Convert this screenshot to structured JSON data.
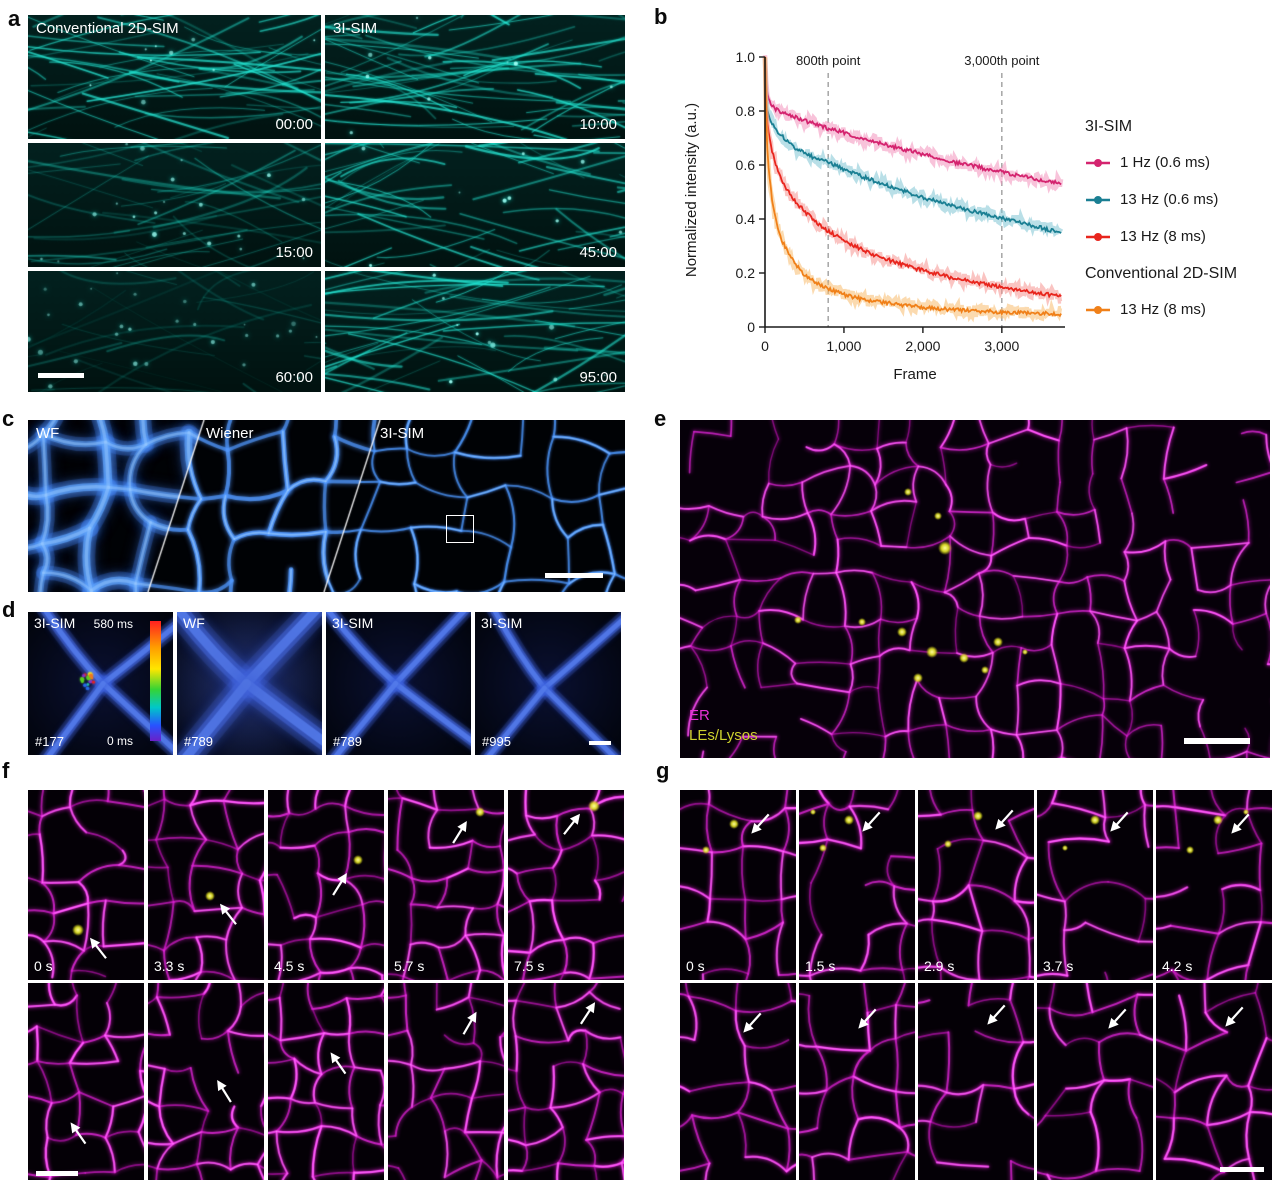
{
  "panels": {
    "a": "a",
    "b": "b",
    "c": "c",
    "d": "d",
    "e": "e",
    "f": "f",
    "g": "g"
  },
  "panel_a": {
    "col1_label": "Conventional 2D-SIM",
    "col2_label": "3I-SIM",
    "timestamps": [
      "00:00",
      "10:00",
      "15:00",
      "45:00",
      "60:00",
      "95:00"
    ]
  },
  "chart_data": {
    "type": "line",
    "title": "",
    "xlabel": "Frame",
    "ylabel": "Normalized intensity (a.u.)",
    "xlim": [
      0,
      3800
    ],
    "ylim": [
      0,
      1.0
    ],
    "xticks": [
      0,
      1000,
      2000,
      3000
    ],
    "xtick_labels": [
      "0",
      "1,000",
      "2,000",
      "3,000"
    ],
    "yticks": [
      0,
      0.2,
      0.4,
      0.6,
      0.8,
      1.0
    ],
    "ytick_labels": [
      "0",
      "0.2",
      "0.4",
      "0.6",
      "0.8",
      "1.0"
    ],
    "grid": false,
    "legend_position": "right",
    "annotations": [
      {
        "text": "800th point",
        "x": 800
      },
      {
        "text": "3,000th point",
        "x": 3000
      }
    ],
    "legend": {
      "group1": "3I-SIM",
      "group2": "Conventional 2D-SIM"
    },
    "x": [
      0,
      10,
      25,
      50,
      100,
      150,
      200,
      300,
      400,
      500,
      600,
      700,
      800,
      1000,
      1200,
      1400,
      1600,
      1800,
      2000,
      2200,
      2400,
      2600,
      2800,
      3000,
      3200,
      3400,
      3600,
      3750
    ],
    "series": [
      {
        "name": "1 Hz (0.6 ms)",
        "group": "3I-SIM",
        "color": "#d4246f",
        "band": "#f291bb",
        "values": [
          1.0,
          0.92,
          0.87,
          0.84,
          0.815,
          0.805,
          0.795,
          0.785,
          0.775,
          0.765,
          0.755,
          0.745,
          0.735,
          0.72,
          0.7,
          0.685,
          0.67,
          0.655,
          0.64,
          0.625,
          0.61,
          0.6,
          0.585,
          0.575,
          0.56,
          0.55,
          0.54,
          0.53
        ]
      },
      {
        "name": "13 Hz (0.6 ms)",
        "group": "3I-SIM",
        "color": "#1a7f93",
        "band": "#7fc4d4",
        "values": [
          1.0,
          0.86,
          0.81,
          0.78,
          0.75,
          0.73,
          0.71,
          0.685,
          0.66,
          0.645,
          0.63,
          0.62,
          0.61,
          0.585,
          0.56,
          0.54,
          0.52,
          0.5,
          0.48,
          0.462,
          0.447,
          0.432,
          0.417,
          0.403,
          0.39,
          0.375,
          0.36,
          0.35
        ]
      },
      {
        "name": "13 Hz (8 ms)",
        "group": "3I-SIM",
        "color": "#e8251d",
        "band": "#f5948f",
        "values": [
          1.0,
          0.83,
          0.77,
          0.71,
          0.64,
          0.59,
          0.55,
          0.5,
          0.46,
          0.43,
          0.4,
          0.375,
          0.355,
          0.32,
          0.29,
          0.265,
          0.245,
          0.225,
          0.21,
          0.195,
          0.18,
          0.168,
          0.158,
          0.148,
          0.138,
          0.128,
          0.12,
          0.113
        ]
      },
      {
        "name": "13 Hz (8 ms)",
        "group": "Conventional 2D-SIM",
        "color": "#f08019",
        "band": "#f8bb6e",
        "values": [
          1.0,
          0.78,
          0.68,
          0.57,
          0.45,
          0.38,
          0.33,
          0.27,
          0.225,
          0.195,
          0.172,
          0.155,
          0.142,
          0.12,
          0.105,
          0.094,
          0.086,
          0.079,
          0.073,
          0.068,
          0.064,
          0.061,
          0.058,
          0.055,
          0.053,
          0.051,
          0.049,
          0.048
        ]
      }
    ]
  },
  "panel_c": {
    "labels": [
      "WF",
      "Wiener",
      "3I-SIM"
    ]
  },
  "panel_d": {
    "frames": [
      {
        "label": "3I-SIM",
        "frame": "#177",
        "cbar_top": "580 ms",
        "cbar_bottom": "0 ms"
      },
      {
        "label": "WF",
        "frame": "#789"
      },
      {
        "label": "3I-SIM",
        "frame": "#789"
      },
      {
        "label": "3I-SIM",
        "frame": "#995"
      }
    ]
  },
  "panel_e": {
    "er_label": "ER",
    "lys_label": "LEs/Lysos",
    "er_color": "#e832d8",
    "lys_color": "#cdd22e"
  },
  "panel_f": {
    "times": [
      "0 s",
      "3.3 s",
      "4.5 s",
      "5.7 s",
      "7.5 s"
    ]
  },
  "panel_g": {
    "times": [
      "0 s",
      "1.5 s",
      "2.9 s",
      "3.7 s",
      "4.2 s"
    ]
  }
}
